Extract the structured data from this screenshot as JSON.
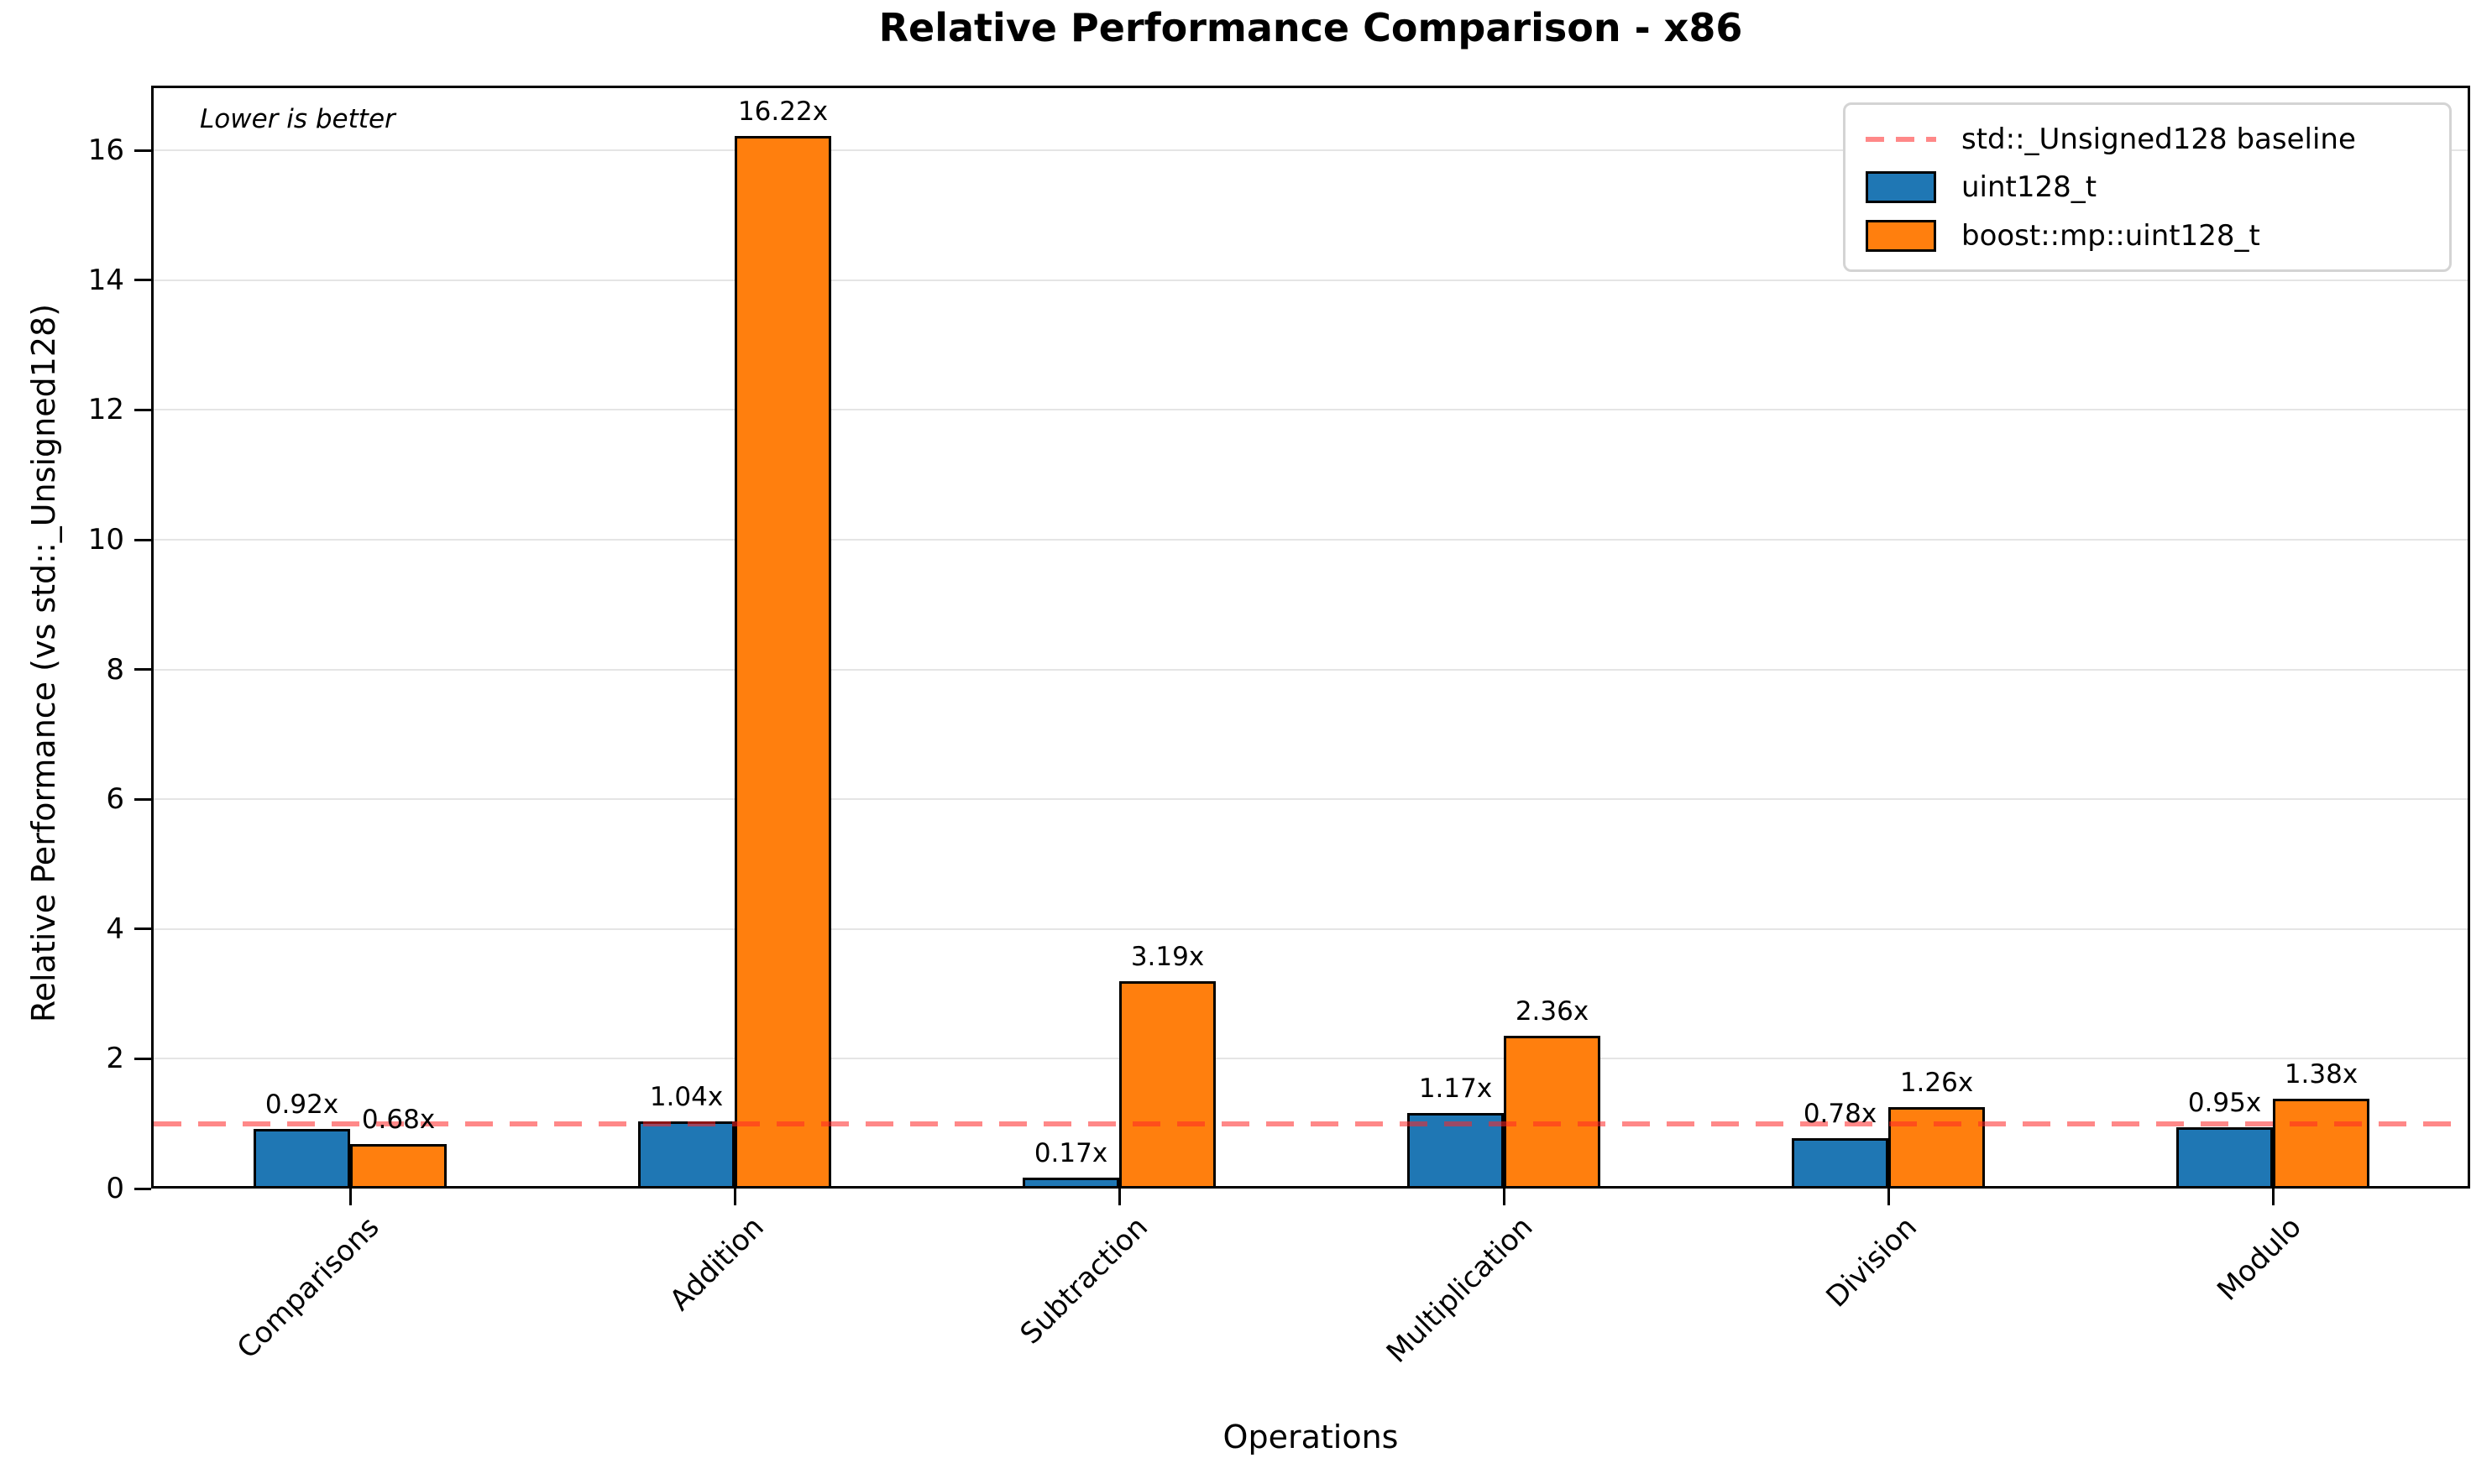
{
  "title": "Relative Performance Comparison - x86",
  "annotation": "Lower is better",
  "chart_data": {
    "type": "bar",
    "title": "Relative Performance Comparison - x86",
    "xlabel": "Operations",
    "ylabel": "Relative Performance (vs std::_Unsigned128)",
    "categories": [
      "Comparisons",
      "Addition",
      "Subtraction",
      "Multiplication",
      "Division",
      "Modulo"
    ],
    "series": [
      {
        "name": "uint128_t",
        "color": "#1f77b4",
        "values": [
          0.92,
          1.04,
          0.17,
          1.17,
          0.78,
          0.95
        ],
        "value_labels": [
          "0.92x",
          "1.04x",
          "0.17x",
          "1.17x",
          "0.78x",
          "0.95x"
        ]
      },
      {
        "name": "boost::mp::uint128_t",
        "color": "#ff7f0e",
        "values": [
          0.68,
          16.22,
          3.19,
          2.36,
          1.26,
          1.38
        ],
        "value_labels": [
          "0.68x",
          "16.22x",
          "3.19x",
          "2.36x",
          "1.26x",
          "1.38x"
        ]
      }
    ],
    "baseline": {
      "label": "std::_Unsigned128 baseline",
      "value": 1,
      "color": "#ff2626",
      "alpha": 0.55,
      "style": "dashed"
    },
    "ylim": [
      0,
      17
    ],
    "yticks": [
      0,
      2,
      4,
      6,
      8,
      10,
      12,
      14,
      16
    ],
    "grid": true,
    "legend_position": "upper right",
    "annotation": "Lower is better",
    "value_suffix": "x"
  }
}
